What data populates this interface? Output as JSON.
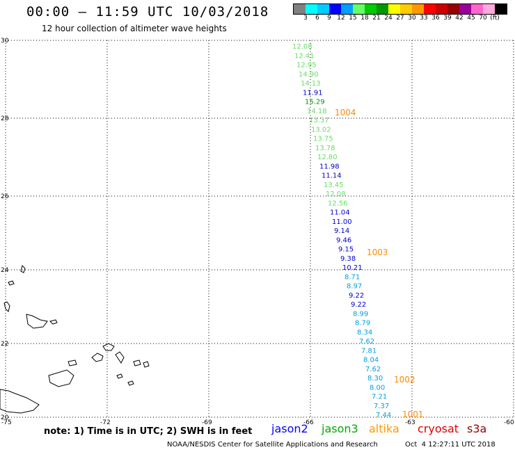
{
  "header": {
    "title": "00:00 – 11:59 UTC 10/03/2018",
    "subtitle": "12 hour collection of altimeter wave heights"
  },
  "legend": {
    "colors": [
      "#808080",
      "#00ffff",
      "#00ccff",
      "#0000ff",
      "#00a0ff",
      "#66ff66",
      "#00cc00",
      "#009900",
      "#ffff00",
      "#ffcc00",
      "#ff9900",
      "#ff0000",
      "#cc0000",
      "#990000",
      "#990099",
      "#ff66cc",
      "#ffaadd",
      "#000000"
    ],
    "labels": [
      "3",
      "6",
      "9",
      "12",
      "15",
      "18",
      "21",
      "24",
      "27",
      "30",
      "33",
      "36",
      "39",
      "42",
      "45",
      "70",
      "(ft)"
    ]
  },
  "axes": {
    "lat_labels": [
      "30",
      "28",
      "26",
      "24",
      "22",
      "20"
    ],
    "lon_labels": [
      "-75",
      "-72",
      "-69",
      "-66",
      "-63",
      "-60"
    ]
  },
  "observations": [
    {
      "text": "12.08",
      "color": "#66dd66"
    },
    {
      "text": "12.41",
      "color": "#66dd66"
    },
    {
      "text": "12.95",
      "color": "#66dd66"
    },
    {
      "text": "14.90",
      "color": "#66dd66"
    },
    {
      "text": "14.13",
      "color": "#66dd66"
    },
    {
      "text": "11.91",
      "color": "#0000cc"
    },
    {
      "text": "15.29",
      "color": "#009900"
    },
    {
      "text": "14.18",
      "color": "#66dd66"
    },
    {
      "text": "13.37",
      "color": "#66dd66"
    },
    {
      "text": "13.02",
      "color": "#66dd66"
    },
    {
      "text": "13.75",
      "color": "#66dd66"
    },
    {
      "text": "13.78",
      "color": "#66dd66"
    },
    {
      "text": "12.80",
      "color": "#66dd66"
    },
    {
      "text": "11.98",
      "color": "#0000cc"
    },
    {
      "text": "11.14",
      "color": "#0000cc"
    },
    {
      "text": "13.45",
      "color": "#66dd66"
    },
    {
      "text": "12.08",
      "color": "#66dd66"
    },
    {
      "text": "12.56",
      "color": "#66dd66"
    },
    {
      "text": "11.04",
      "color": "#0000cc"
    },
    {
      "text": "11.00",
      "color": "#0000cc"
    },
    {
      "text": "9.14",
      "color": "#0000cc"
    },
    {
      "text": "9.46",
      "color": "#0000cc"
    },
    {
      "text": "9.15",
      "color": "#0000cc"
    },
    {
      "text": "9.38",
      "color": "#0000cc"
    },
    {
      "text": "10.21",
      "color": "#0000cc"
    },
    {
      "text": "8.71",
      "color": "#00a0e0"
    },
    {
      "text": "8.97",
      "color": "#00a0e0"
    },
    {
      "text": "9.22",
      "color": "#0000cc"
    },
    {
      "text": "9.22",
      "color": "#0000cc"
    },
    {
      "text": "8.99",
      "color": "#00a0e0"
    },
    {
      "text": "8.79",
      "color": "#00a0e0"
    },
    {
      "text": "8.34",
      "color": "#00a0e0"
    },
    {
      "text": "7.62",
      "color": "#00a0e0"
    },
    {
      "text": "7.81",
      "color": "#00a0e0"
    },
    {
      "text": "8.04",
      "color": "#00a0e0"
    },
    {
      "text": "7.62",
      "color": "#00a0e0"
    },
    {
      "text": "8.30",
      "color": "#00a0e0"
    },
    {
      "text": "8.00",
      "color": "#00a0e0"
    },
    {
      "text": "7.21",
      "color": "#00a0e0"
    },
    {
      "text": "7.37",
      "color": "#00a0e0"
    },
    {
      "text": "7.44",
      "color": "#00a0e0"
    }
  ],
  "pressure_labels": [
    "1004",
    "1003",
    "1002",
    "1001"
  ],
  "note": "note: 1) Time is in UTC; 2) SWH is in feet",
  "satellites": [
    {
      "name": "jason2",
      "color": "#0000ff"
    },
    {
      "name": "jason3",
      "color": "#00aa00"
    },
    {
      "name": "altika",
      "color": "#ff9900"
    },
    {
      "name": "cryosat",
      "color": "#dd0000"
    },
    {
      "name": "s3a",
      "color": "#990000"
    }
  ],
  "footer": {
    "credit": "NOAA/NESDIS Center for Satellite Applications and Research",
    "timestamp": "Oct  4 12:27:11 UTC 2018"
  }
}
